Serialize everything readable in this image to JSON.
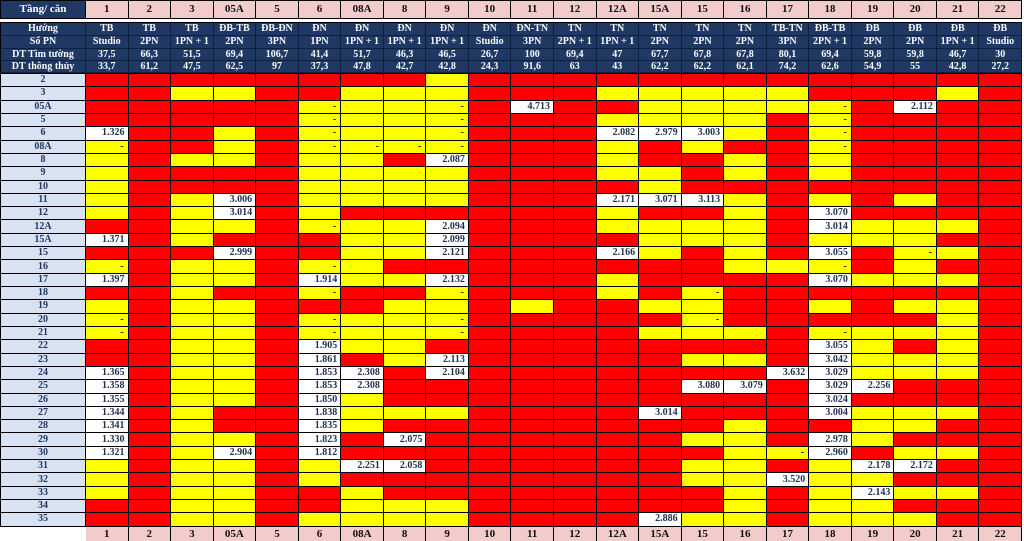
{
  "colors": {
    "sold_red": "#FE0000",
    "available_yellow": "#FFFF00",
    "price_white": "#FFFFFF",
    "header_navy": "#203864",
    "header_pink": "#F2CBCB",
    "label_blue": "#D9E2F3"
  },
  "header": {
    "corner_label": "Tầng/ căn",
    "columns": [
      "1",
      "2",
      "3",
      "05A",
      "5",
      "6",
      "08A",
      "8",
      "9",
      "10",
      "11",
      "12",
      "12A",
      "15A",
      "15",
      "16",
      "17",
      "18",
      "19",
      "20",
      "21",
      "22"
    ],
    "row_labels": {
      "huong": "Hướng",
      "so_pn": "Số PN",
      "dt_tim_tuong": "DT Tìm tường",
      "dt_thong_thuy": "DT thông thủy"
    },
    "huong": [
      "TB",
      "TB",
      "TB",
      "ĐB-TB",
      "ĐB-ĐN",
      "ĐN",
      "ĐN",
      "ĐN",
      "ĐN",
      "ĐN",
      "ĐN-TN",
      "TN",
      "TN",
      "TN",
      "TN",
      "TN",
      "TB-TN",
      "ĐB-TB",
      "ĐB",
      "ĐB",
      "ĐB",
      "ĐB"
    ],
    "so_pn": [
      "Studio",
      "2PN",
      "1PN + 1",
      "2PN",
      "3PN",
      "1PN",
      "1PN + 1",
      "1PN + 1",
      "1PN + 1",
      "Studio",
      "3PN",
      "2PN + 1",
      "1PN + 1",
      "2PN",
      "2PN",
      "2PN",
      "3PN",
      "2PN + 1",
      "2PN",
      "2PN",
      "1PN + 1",
      "Studio"
    ],
    "dt_tim_tuong": [
      "37,5",
      "66,3",
      "51,5",
      "69,4",
      "106,7",
      "41,4",
      "51,7",
      "46,3",
      "46,5",
      "26,7",
      "100",
      "69,4",
      "47",
      "67,7",
      "67,8",
      "67,8",
      "80,1",
      "69,4",
      "59,8",
      "59,8",
      "46,7",
      "30"
    ],
    "dt_thong_thuy": [
      "33,7",
      "61,2",
      "47,5",
      "62,5",
      "97",
      "37,3",
      "47,8",
      "42,7",
      "42,8",
      "24,3",
      "91,6",
      "63",
      "43",
      "62,2",
      "62,2",
      "62,1",
      "74,2",
      "62,6",
      "54,9",
      "55",
      "42,8",
      "27,2"
    ]
  },
  "body": {
    "floor_labels": [
      "2",
      "3",
      "05A",
      "5",
      "6",
      "08A",
      "8",
      "9",
      "10",
      "11",
      "12",
      "12A",
      "15A",
      "15",
      "16",
      "17",
      "18",
      "19",
      "20",
      "21",
      "22",
      "23",
      "24",
      "25",
      "26",
      "27",
      "28",
      "29",
      "30",
      "31",
      "32",
      "33",
      "34",
      "35"
    ],
    "cells": [
      [
        "R",
        "R",
        "R",
        "R",
        "R",
        "R",
        "R",
        "R",
        "Y",
        "R",
        "R",
        "R",
        "R",
        "R",
        "R",
        "R",
        "R",
        "R",
        "R",
        "R",
        "R",
        "R"
      ],
      [
        "R",
        "R",
        "Y",
        "Y",
        "R",
        "R",
        "Y",
        "Y",
        "Y",
        "R",
        "R",
        "R",
        "Y",
        "Y",
        "Y",
        "Y",
        "Y",
        "R",
        "R",
        "R",
        "Y",
        "R"
      ],
      [
        "R",
        "R",
        "R",
        "R",
        "R",
        "Y-",
        "Y",
        "Y",
        "Y-",
        "R",
        "4.713",
        "R",
        "R",
        "Y",
        "Y",
        "Y",
        "Y",
        "Y-",
        "R",
        "2.112",
        "R",
        "R"
      ],
      [
        "R",
        "R",
        "R",
        "R",
        "R",
        "Y-",
        "Y",
        "Y",
        "Y-",
        "R",
        "R",
        "R",
        "Y",
        "Y",
        "Y",
        "Y",
        "R",
        "Y-",
        "R",
        "R",
        "R",
        "R"
      ],
      [
        "1.326",
        "R",
        "R",
        "Y",
        "R",
        "Y-",
        "Y",
        "Y",
        "Y-",
        "R",
        "R",
        "R",
        "2.082",
        "2.979",
        "3.003",
        "Y",
        "R",
        "Y-",
        "R",
        "R",
        "R",
        "R"
      ],
      [
        "Y-",
        "R",
        "R",
        "Y",
        "R",
        "Y-",
        "Y-",
        "Y-",
        "Y-",
        "R",
        "R",
        "R",
        "Y",
        "R",
        "Y",
        "R",
        "R",
        "Y-",
        "R",
        "R",
        "R",
        "R"
      ],
      [
        "Y",
        "R",
        "Y",
        "Y",
        "R",
        "Y",
        "Y",
        "R",
        "2.087",
        "R",
        "R",
        "R",
        "Y",
        "R",
        "R",
        "Y",
        "R",
        "Y",
        "R",
        "R",
        "R",
        "R"
      ],
      [
        "Y",
        "R",
        "R",
        "R",
        "R",
        "Y",
        "Y",
        "Y",
        "Y",
        "R",
        "R",
        "R",
        "Y",
        "Y",
        "R",
        "Y",
        "R",
        "Y",
        "R",
        "R",
        "R",
        "R"
      ],
      [
        "Y",
        "R",
        "R",
        "R",
        "R",
        "Y",
        "Y",
        "Y",
        "Y",
        "R",
        "R",
        "R",
        "R",
        "Y",
        "R",
        "R",
        "R",
        "R",
        "R",
        "R",
        "R",
        "R"
      ],
      [
        "Y",
        "R",
        "Y",
        "3.006",
        "R",
        "Y",
        "Y",
        "Y",
        "Y",
        "R",
        "R",
        "R",
        "2.171",
        "3.071",
        "3.113",
        "Y",
        "R",
        "Y",
        "R",
        "Y",
        "R",
        "R"
      ],
      [
        "Y",
        "R",
        "Y",
        "3.014",
        "R",
        "Y",
        "R",
        "R",
        "R",
        "R",
        "R",
        "R",
        "Y",
        "R",
        "R",
        "Y",
        "R",
        "3.070",
        "R",
        "R",
        "R",
        "R"
      ],
      [
        "R",
        "R",
        "Y",
        "Y",
        "R",
        "Y-",
        "Y",
        "Y",
        "2.094",
        "R",
        "R",
        "R",
        "Y",
        "Y",
        "Y",
        "Y",
        "R",
        "3.014",
        "Y",
        "Y",
        "Y",
        "R"
      ],
      [
        "1.371",
        "R",
        "Y",
        "R",
        "R",
        "R",
        "Y",
        "Y",
        "2.099",
        "R",
        "R",
        "R",
        "R",
        "Y",
        "Y",
        "Y",
        "R",
        "Y",
        "Y",
        "Y",
        "R",
        "R"
      ],
      [
        "R",
        "R",
        "R",
        "2.999",
        "R",
        "R",
        "Y",
        "Y",
        "2.121",
        "R",
        "R",
        "R",
        "2.166",
        "Y",
        "R",
        "Y",
        "R",
        "3.055",
        "R",
        "Y-",
        "Y",
        "R"
      ],
      [
        "Y-",
        "R",
        "Y",
        "Y",
        "R",
        "Y-",
        "Y",
        "R",
        "R",
        "R",
        "R",
        "R",
        "R",
        "R",
        "R",
        "Y",
        "Y",
        "Y-",
        "R",
        "Y",
        "R",
        "R"
      ],
      [
        "1.397",
        "R",
        "Y",
        "Y",
        "R",
        "1.914",
        "Y",
        "Y",
        "2.132",
        "R",
        "R",
        "R",
        "Y",
        "R",
        "R",
        "R",
        "R",
        "3.070",
        "Y",
        "Y",
        "Y",
        "R"
      ],
      [
        "R",
        "R",
        "Y",
        "R",
        "R",
        "Y-",
        "R",
        "R",
        "Y-",
        "R",
        "R",
        "R",
        "Y",
        "R",
        "Y-",
        "R",
        "R",
        "R",
        "R",
        "R",
        "R",
        "R"
      ],
      [
        "Y",
        "R",
        "Y",
        "Y",
        "R",
        "R",
        "R",
        "Y",
        "Y",
        "R",
        "Y",
        "R",
        "R",
        "Y",
        "Y",
        "R",
        "R",
        "Y",
        "R",
        "Y",
        "Y",
        "R"
      ],
      [
        "Y-",
        "R",
        "Y",
        "Y",
        "R",
        "Y-",
        "Y",
        "Y",
        "Y-",
        "R",
        "R",
        "R",
        "R",
        "R",
        "Y-",
        "R",
        "R",
        "R",
        "R",
        "R",
        "Y",
        "R"
      ],
      [
        "Y-",
        "R",
        "Y",
        "Y",
        "R",
        "Y-",
        "Y",
        "Y",
        "Y-",
        "R",
        "R",
        "R",
        "R",
        "Y",
        "Y",
        "Y",
        "R",
        "Y-",
        "Y",
        "Y",
        "Y",
        "R"
      ],
      [
        "R",
        "R",
        "Y",
        "Y",
        "R",
        "1.905",
        "Y",
        "Y",
        "R",
        "R",
        "R",
        "R",
        "R",
        "R",
        "R",
        "R",
        "R",
        "3.055",
        "Y",
        "R",
        "Y",
        "R"
      ],
      [
        "R",
        "R",
        "Y",
        "Y",
        "R",
        "1.861",
        "R",
        "Y",
        "2.113",
        "R",
        "R",
        "R",
        "R",
        "R",
        "Y",
        "Y",
        "R",
        "3.042",
        "Y",
        "Y",
        "Y",
        "R"
      ],
      [
        "1.365",
        "R",
        "Y",
        "Y",
        "R",
        "1.853",
        "2.308",
        "R",
        "2.104",
        "R",
        "R",
        "R",
        "R",
        "R",
        "R",
        "R",
        "3.632",
        "3.029",
        "Y",
        "Y",
        "Y",
        "R"
      ],
      [
        "1.358",
        "R",
        "Y",
        "Y",
        "R",
        "1.853",
        "2.308",
        "R",
        "R",
        "R",
        "R",
        "R",
        "R",
        "R",
        "3.080",
        "3.079",
        "R",
        "3.029",
        "2.256",
        "R",
        "R",
        "R"
      ],
      [
        "1.355",
        "R",
        "Y",
        "Y",
        "R",
        "1.850",
        "Y",
        "R",
        "R",
        "R",
        "R",
        "R",
        "R",
        "R",
        "R",
        "R",
        "R",
        "3.024",
        "R",
        "R",
        "R",
        "R"
      ],
      [
        "1.344",
        "R",
        "Y",
        "R",
        "R",
        "1.838",
        "Y",
        "Y",
        "Y",
        "R",
        "R",
        "R",
        "R",
        "3.014",
        "R",
        "R",
        "R",
        "3.004",
        "Y",
        "Y",
        "Y",
        "R"
      ],
      [
        "1.341",
        "R",
        "Y",
        "R",
        "R",
        "1.835",
        "Y",
        "R",
        "R",
        "R",
        "R",
        "R",
        "R",
        "R",
        "R",
        "Y",
        "R",
        "R",
        "Y",
        "Y",
        "R",
        "R"
      ],
      [
        "1.330",
        "R",
        "Y",
        "Y",
        "R",
        "1.823",
        "R",
        "2.075",
        "R",
        "R",
        "R",
        "R",
        "R",
        "R",
        "Y",
        "Y",
        "R",
        "2.978",
        "Y",
        "R",
        "R",
        "R"
      ],
      [
        "1.321",
        "R",
        "Y",
        "2.904",
        "R",
        "1.812",
        "R",
        "R",
        "R",
        "R",
        "R",
        "R",
        "R",
        "R",
        "R",
        "Y",
        "Y-",
        "2.960",
        "R",
        "Y",
        "Y",
        "R"
      ],
      [
        "Y",
        "R",
        "Y",
        "Y",
        "R",
        "Y",
        "2.251",
        "2.058",
        "R",
        "R",
        "R",
        "R",
        "R",
        "R",
        "Y",
        "Y",
        "R",
        "Y",
        "2.178",
        "2.172",
        "R",
        "R"
      ],
      [
        "Y",
        "R",
        "Y",
        "Y",
        "R",
        "Y",
        "R",
        "R",
        "R",
        "R",
        "R",
        "R",
        "R",
        "R",
        "Y",
        "Y",
        "3.520",
        "Y",
        "Y",
        "R",
        "R",
        "R"
      ],
      [
        "Y",
        "R",
        "Y",
        "Y",
        "R",
        "R",
        "Y",
        "R",
        "R",
        "R",
        "R",
        "R",
        "R",
        "R",
        "R",
        "Y",
        "R",
        "Y",
        "2.143",
        "Y",
        "Y",
        "R"
      ],
      [
        "R",
        "R",
        "Y",
        "Y",
        "R",
        "R",
        "Y",
        "Y",
        "Y",
        "R",
        "R",
        "R",
        "R",
        "R",
        "R",
        "Y",
        "R",
        "Y",
        "Y",
        "R",
        "R",
        "R"
      ],
      [
        "R",
        "R",
        "Y",
        "Y",
        "R",
        "Y",
        "Y",
        "Y",
        "Y",
        "R",
        "R",
        "R",
        "R",
        "2.886",
        "Y",
        "Y",
        "R",
        "Y",
        "Y",
        "Y",
        "R",
        "R"
      ]
    ]
  },
  "footer": {
    "columns": [
      "1",
      "2",
      "3",
      "05A",
      "5",
      "6",
      "08A",
      "8",
      "9",
      "10",
      "11",
      "12",
      "12A",
      "15A",
      "15",
      "16",
      "17",
      "18",
      "19",
      "20",
      "21",
      "22"
    ]
  }
}
